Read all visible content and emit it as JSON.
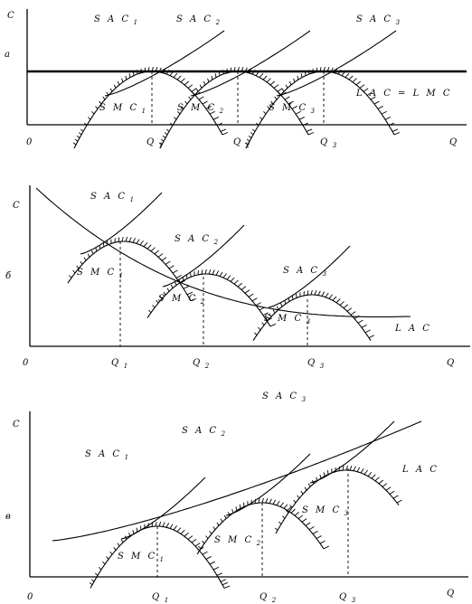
{
  "axis_labels": {
    "cost": "C",
    "quantity": "Q",
    "origin": "0"
  },
  "panels": [
    {
      "letter": "а",
      "sac_labels": [
        [
          "SAC",
          "1"
        ],
        [
          "SAC",
          "2"
        ],
        [
          "SAC",
          "3"
        ]
      ],
      "smc_labels": [
        [
          "SMC",
          "1"
        ],
        [
          "SMC",
          "2"
        ],
        [
          "SMC",
          "3"
        ]
      ],
      "lac_label": "LAC = LMC",
      "q_labels": [
        [
          "Q",
          "1"
        ],
        [
          "Q",
          "2"
        ],
        [
          "Q",
          "3"
        ]
      ]
    },
    {
      "letter": "б",
      "sac_labels": [
        [
          "SAC",
          "1"
        ],
        [
          "SAC",
          "2"
        ],
        [
          "SAC",
          "3"
        ]
      ],
      "smc_labels": [
        [
          "SMC",
          "1"
        ],
        [
          "SMC",
          "2"
        ],
        [
          "SMC",
          "3"
        ]
      ],
      "lac_label": "LAC",
      "q_labels": [
        [
          "Q",
          "1"
        ],
        [
          "Q",
          "2"
        ],
        [
          "Q",
          "3"
        ]
      ]
    },
    {
      "letter": "в",
      "sac_labels": [
        [
          "SAC",
          "1"
        ],
        [
          "SAC",
          "2"
        ],
        [
          "SAC",
          "3"
        ]
      ],
      "smc_labels": [
        [
          "SMC",
          "1"
        ],
        [
          "SMC",
          "2"
        ],
        [
          "SMC",
          "3"
        ]
      ],
      "lac_label": "LAC",
      "q_labels": [
        [
          "Q",
          "1"
        ],
        [
          "Q",
          "2"
        ],
        [
          "Q",
          "3"
        ]
      ]
    }
  ]
}
